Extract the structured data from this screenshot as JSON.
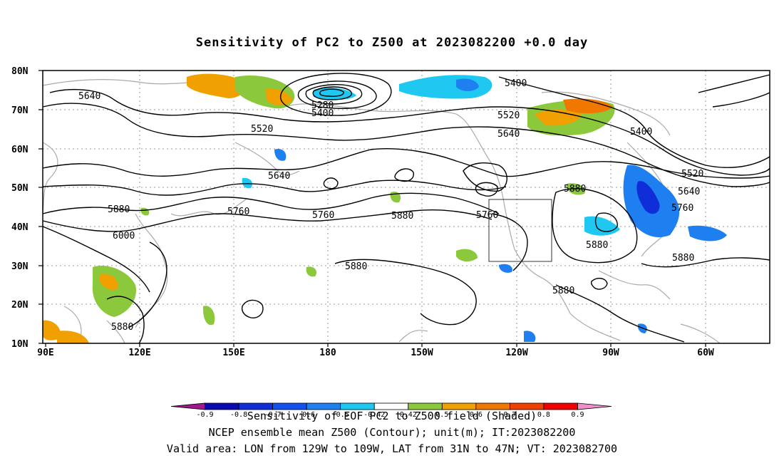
{
  "title": "Sensitivity of PC2 to Z500 at 2023082200 +0.0 day",
  "lat_labels": [
    "80N",
    "70N",
    "60N",
    "50N",
    "40N",
    "30N",
    "20N",
    "10N"
  ],
  "lon_labels": [
    "90E",
    "120E",
    "150E",
    "180",
    "150W",
    "120W",
    "90W",
    "60W"
  ],
  "contour_labels": [
    {
      "text": "5640"
    },
    {
      "text": "5280"
    },
    {
      "text": "5400"
    },
    {
      "text": "5400"
    },
    {
      "text": "5520"
    },
    {
      "text": "5520"
    },
    {
      "text": "5640"
    },
    {
      "text": "5400"
    },
    {
      "text": "5520"
    },
    {
      "text": "5640"
    },
    {
      "text": "5640"
    },
    {
      "text": "5880"
    },
    {
      "text": "5760"
    },
    {
      "text": "5760"
    },
    {
      "text": "5880"
    },
    {
      "text": "5760"
    },
    {
      "text": "5880"
    },
    {
      "text": "5760"
    },
    {
      "text": "6000"
    },
    {
      "text": "5880"
    },
    {
      "text": "5880"
    },
    {
      "text": "5880"
    },
    {
      "text": "5880"
    }
  ],
  "colorbar": {
    "colors": [
      "#a01890",
      "#0a0ab0",
      "#0f2ed8",
      "#1450f0",
      "#1e80f0",
      "#1ec8f0",
      "#ffffff",
      "#8cc83c",
      "#f0a000",
      "#f07800",
      "#f04000",
      "#f00000",
      "#f090c8"
    ],
    "tick_labels": [
      "-0.9",
      "-0.8",
      "-0.7",
      "-0.6",
      "-0.5",
      "-0.42",
      "0.42",
      "0.5",
      "0.6",
      "0.7",
      "0.8",
      "0.9"
    ]
  },
  "captions": {
    "line1": "Sensitivity of EOF PC2 to Z500 field (Shaded)",
    "line2": "NCEP ensemble mean Z500 (Contour); unit(m); IT:2023082200",
    "line3": "Valid area: LON from 129W to 109W, LAT from 31N to 47N; VT: 2023082700"
  }
}
